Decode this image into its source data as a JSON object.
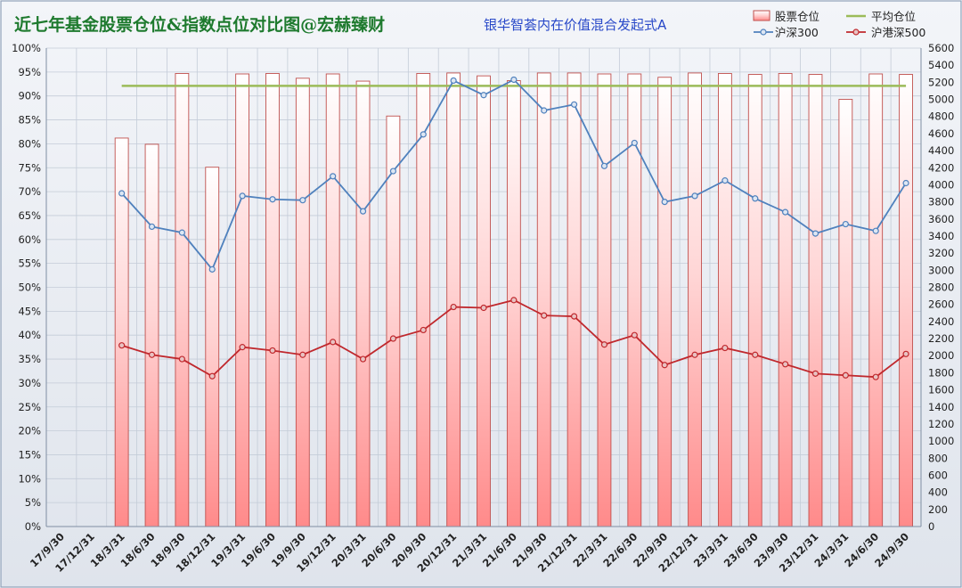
{
  "chart_data": {
    "type": "bar",
    "title": "近七年基金股票仓位&指数点位对比图@宏赫臻财",
    "subtitle": "银华智荟内在价值混合发起式A",
    "categories": [
      "17/9/30",
      "17/12/31",
      "18/3/31",
      "18/6/30",
      "18/9/30",
      "18/12/31",
      "19/3/31",
      "19/6/30",
      "19/9/30",
      "19/12/31",
      "20/3/31",
      "20/6/30",
      "20/9/30",
      "20/12/31",
      "21/3/31",
      "21/6/30",
      "21/9/30",
      "21/12/31",
      "22/3/31",
      "22/6/30",
      "22/9/30",
      "22/12/31",
      "23/3/31",
      "23/6/30",
      "23/9/30",
      "23/12/31",
      "24/3/31",
      "24/6/30",
      "24/9/30"
    ],
    "left_axis": {
      "min": 0,
      "max": 100,
      "step": 5,
      "suffix": "%"
    },
    "right_axis": {
      "min": 0,
      "max": 5600,
      "step": 200
    },
    "series": [
      {
        "name": "股票仓位",
        "kind": "bar",
        "axis": "left",
        "color": "#ff8f8f",
        "values": [
          null,
          null,
          81.2,
          79.9,
          94.7,
          75.1,
          94.6,
          94.7,
          93.7,
          94.6,
          93.1,
          85.8,
          94.7,
          94.8,
          94.2,
          93.2,
          94.8,
          94.8,
          94.6,
          94.6,
          93.9,
          94.8,
          94.7,
          94.5,
          94.7,
          94.5,
          89.3,
          94.6,
          94.5
        ]
      },
      {
        "name": "平均仓位",
        "kind": "line",
        "axis": "left",
        "color": "#9bbb59",
        "values": [
          null,
          null,
          92.1,
          92.1,
          92.1,
          92.1,
          92.1,
          92.1,
          92.1,
          92.1,
          92.1,
          92.1,
          92.1,
          92.1,
          92.1,
          92.1,
          92.1,
          92.1,
          92.1,
          92.1,
          92.1,
          92.1,
          92.1,
          92.1,
          92.1,
          92.1,
          92.1,
          92.1,
          92.1
        ]
      },
      {
        "name": "沪深300",
        "kind": "line",
        "axis": "right",
        "color": "#4f81bd",
        "values": [
          null,
          null,
          3900,
          3510,
          3440,
          3010,
          3870,
          3830,
          3820,
          4100,
          3690,
          4160,
          4590,
          5220,
          5050,
          5230,
          4870,
          4940,
          4220,
          4490,
          3800,
          3870,
          4050,
          3840,
          3680,
          3430,
          3540,
          3460,
          4020
        ]
      },
      {
        "name": "沪港深500",
        "kind": "line",
        "axis": "right",
        "color": "#c0282d",
        "values": [
          null,
          null,
          2120,
          2010,
          1960,
          1760,
          2100,
          2060,
          2010,
          2160,
          1960,
          2200,
          2300,
          2570,
          2560,
          2650,
          2470,
          2460,
          2130,
          2240,
          1890,
          2010,
          2090,
          2010,
          1900,
          1790,
          1770,
          1750,
          2020
        ]
      }
    ],
    "legend": {
      "position": "top-right"
    }
  }
}
